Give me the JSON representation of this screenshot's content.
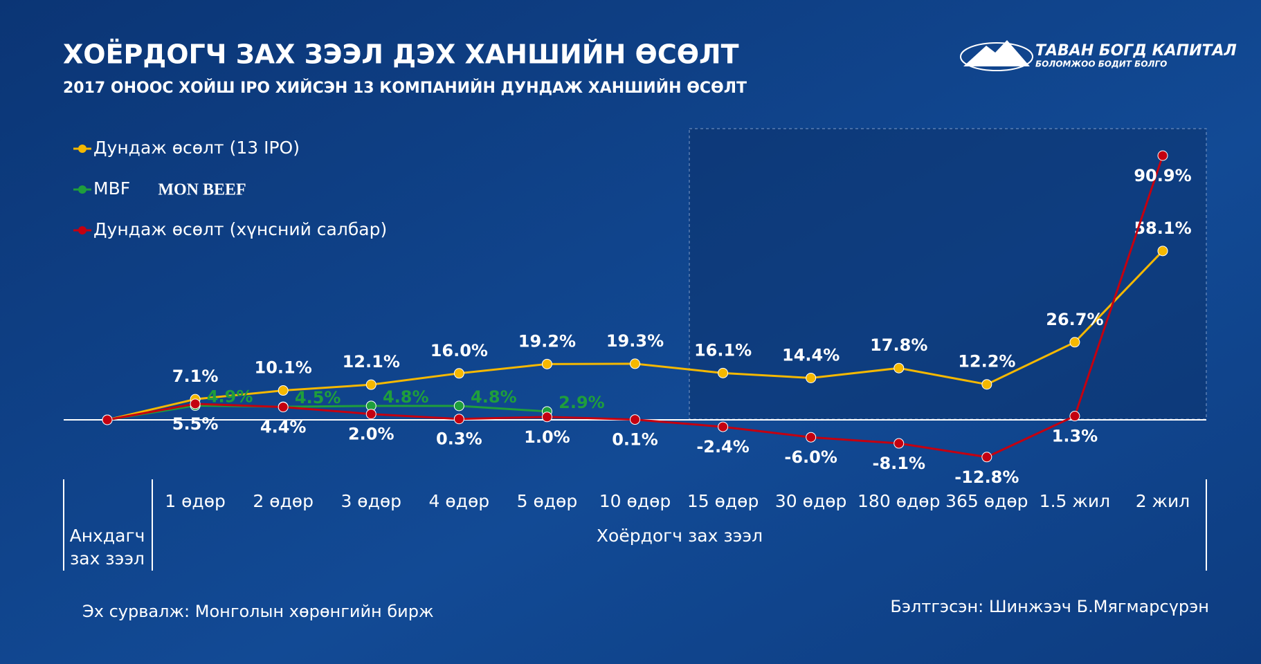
{
  "header": {
    "logo": "ТАВАН БОГД КАПИТАЛ",
    "logo_slogan": "БОЛОМЖОО БОДИТ БОЛГО",
    "mbf_logo": "MON BEEF"
  },
  "chart_data": {
    "type": "line",
    "title": "ХОЁРДОГЧ ЗАХ ЗЭЭЛ ДЭХ ХАНШИЙН ӨСӨЛТ",
    "subtitle": "2017 ОНООС ХОЙШ IPO ХИЙСЭН 13 КОМПАНИЙН ДУНДАЖ ХАНШИЙН ӨСӨЛТ",
    "categories": [
      null,
      "1 өдөр",
      "2 өдөр",
      "3 өдөр",
      "4 өдөр",
      "5 өдөр",
      "10 өдөр",
      "15 өдөр",
      "30 өдөр",
      "180 өдөр",
      "365 өдөр",
      "1.5 жил",
      "2 жил"
    ],
    "group_labels": [
      "Анхдагч",
      "зах зээл",
      "Хоёрдогч зах зээл"
    ],
    "series": [
      {
        "name": "Дундаж өсөлт (13 IPO)",
        "color": "#f5b800",
        "values": [
          0,
          7.1,
          10.1,
          12.1,
          16.0,
          19.2,
          19.3,
          16.1,
          14.4,
          17.8,
          12.2,
          26.7,
          58.1
        ],
        "value_labels": [
          null,
          "7.1%",
          "10.1%",
          "12.1%",
          "16.0%",
          "19.2%",
          "19.3%",
          "16.1%",
          "14.4%",
          "17.8%",
          "12.2%",
          "26.7%",
          "58.1%"
        ]
      },
      {
        "name": "MBF",
        "color": "#1f9e3c",
        "values": [
          0,
          4.9,
          4.5,
          4.8,
          4.8,
          2.9,
          null,
          null,
          null,
          null,
          null,
          null,
          null
        ],
        "value_labels": [
          null,
          "4.9%",
          "4.5%",
          "4.8%",
          "4.8%",
          "2.9%",
          null,
          null,
          null,
          null,
          null,
          null,
          null
        ]
      },
      {
        "name": "Дундаж өсөлт (хүнсний салбар)",
        "color": "#c40010",
        "values": [
          0,
          5.5,
          4.4,
          2.0,
          0.3,
          1.0,
          0.1,
          -2.4,
          -6.0,
          -8.1,
          -12.8,
          1.3,
          90.9
        ],
        "value_labels": [
          null,
          "5.5%",
          "4.4%",
          "2.0%",
          "0.3%",
          "1.0%",
          "0.1%",
          "-2.4%",
          "-6.0%",
          "-8.1%",
          "-12.8%",
          "1.3%",
          "90.9%"
        ]
      }
    ],
    "source": "Эх сурвалж: Монголын хөрөнгийн бирж",
    "author": "Бэлтгэсэн: Шинжээч Б.Мягмарсүрэн"
  }
}
